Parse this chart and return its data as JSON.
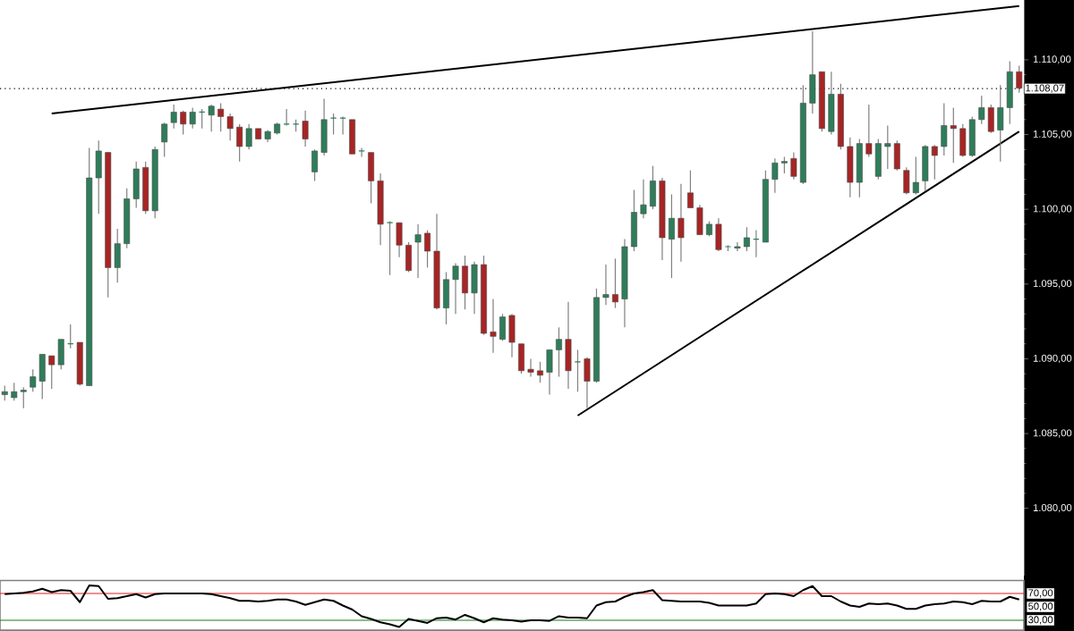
{
  "chart_data": [
    {
      "type": "candlestick",
      "categories": [
        null,
        null,
        null,
        null,
        null,
        null,
        null,
        null,
        null,
        null,
        null,
        null,
        null,
        null,
        null,
        null,
        null,
        null,
        null,
        null,
        null,
        null,
        null,
        null,
        null,
        null,
        null,
        null,
        null,
        null,
        null,
        null,
        null,
        null,
        null,
        null,
        null,
        null,
        null,
        null,
        null,
        null,
        null,
        null,
        null,
        null,
        null,
        null,
        null,
        null,
        null,
        null,
        null,
        null,
        null,
        null,
        null,
        null,
        null,
        null,
        null,
        null,
        null,
        null,
        null,
        null,
        null,
        null,
        null,
        null,
        null,
        null,
        null,
        null,
        null,
        null,
        null,
        null,
        null,
        null,
        null,
        null,
        null,
        null,
        null,
        null,
        null,
        null,
        null,
        null,
        null,
        null,
        null,
        null,
        null,
        null,
        null,
        null,
        null,
        null,
        null,
        null,
        null,
        null,
        null,
        null,
        null,
        null,
        null
      ],
      "ohlc": [
        [
          1087.6,
          1088.2,
          1087.2,
          1087.8
        ],
        [
          1087.4,
          1088.4,
          1087.2,
          1087.8
        ],
        [
          1087.8,
          1088.1,
          1086.7,
          1087.9
        ],
        [
          1088.1,
          1089.3,
          1087.8,
          1088.8
        ],
        [
          1088.5,
          1090.3,
          1087.3,
          1090.3
        ],
        [
          1090.2,
          1090.2,
          1088.0,
          1089.6
        ],
        [
          1089.6,
          1091.3,
          1089.3,
          1091.3
        ],
        [
          1091.0,
          1092.3,
          1090.7,
          1091.0
        ],
        [
          1091.1,
          1091.1,
          1088.2,
          1088.3
        ],
        [
          1088.2,
          1104.1,
          1088.2,
          1102.1
        ],
        [
          1102.1,
          1104.6,
          1099.7,
          1103.9
        ],
        [
          1103.8,
          1103.8,
          1094.1,
          1096.1
        ],
        [
          1096.1,
          1098.7,
          1095.1,
          1097.7
        ],
        [
          1097.7,
          1101.4,
          1097.4,
          1100.7
        ],
        [
          1100.7,
          1103.2,
          1100.1,
          1102.7
        ],
        [
          1102.8,
          1103.2,
          1099.7,
          1099.9
        ],
        [
          1099.9,
          1104.2,
          1099.4,
          1104.0
        ],
        [
          1104.5,
          1105.8,
          1103.5,
          1105.7
        ],
        [
          1105.8,
          1107.0,
          1105.4,
          1106.5
        ],
        [
          1106.5,
          1106.6,
          1105.0,
          1105.7
        ],
        [
          1105.7,
          1106.8,
          1105.4,
          1106.5
        ],
        [
          1106.5,
          1106.7,
          1105.4,
          1106.5
        ],
        [
          1106.3,
          1107.0,
          1105.2,
          1106.9
        ],
        [
          1106.7,
          1107.1,
          1105.2,
          1106.2
        ],
        [
          1106.2,
          1106.4,
          1104.6,
          1105.4
        ],
        [
          1105.5,
          1105.7,
          1103.2,
          1104.2
        ],
        [
          1104.2,
          1105.7,
          1104.0,
          1105.4
        ],
        [
          1105.4,
          1105.4,
          1104.7,
          1104.7
        ],
        [
          1104.7,
          1105.3,
          1104.5,
          1105.2
        ],
        [
          1105.1,
          1105.8,
          1105.0,
          1105.7
        ],
        [
          1105.7,
          1106.7,
          1105.6,
          1105.7
        ],
        [
          1105.7,
          1106.0,
          1105.2,
          1105.7
        ],
        [
          1105.9,
          1106.6,
          1104.2,
          1104.7
        ],
        [
          1102.5,
          1104.0,
          1101.9,
          1103.9
        ],
        [
          1103.8,
          1107.4,
          1103.6,
          1106.0
        ],
        [
          1106.1,
          1106.4,
          1105.0,
          1106.1
        ],
        [
          1106.1,
          1106.2,
          1105.0,
          1106.1
        ],
        [
          1106.0,
          1106.0,
          1103.7,
          1103.7
        ],
        [
          1103.9,
          1104.1,
          1103.5,
          1103.9
        ],
        [
          1103.8,
          1103.8,
          1100.4,
          1101.9
        ],
        [
          1101.9,
          1102.4,
          1097.6,
          1099.0
        ],
        [
          1099.1,
          1099.2,
          1095.6,
          1099.1
        ],
        [
          1099.1,
          1099.1,
          1096.8,
          1097.6
        ],
        [
          1097.6,
          1097.8,
          1095.8,
          1095.9
        ],
        [
          1097.8,
          1099.0,
          1095.4,
          1098.3
        ],
        [
          1098.4,
          1098.6,
          1096.1,
          1097.2
        ],
        [
          1097.2,
          1099.7,
          1093.3,
          1093.4
        ],
        [
          1093.4,
          1095.8,
          1092.3,
          1095.3
        ],
        [
          1095.3,
          1096.4,
          1093.0,
          1096.2
        ],
        [
          1096.2,
          1096.9,
          1093.3,
          1094.4
        ],
        [
          1094.4,
          1096.5,
          1093.0,
          1096.3
        ],
        [
          1096.3,
          1096.9,
          1091.6,
          1091.7
        ],
        [
          1091.8,
          1094.0,
          1090.4,
          1091.5
        ],
        [
          1091.3,
          1093.0,
          1091.2,
          1092.8
        ],
        [
          1092.9,
          1093.0,
          1090.1,
          1091.1
        ],
        [
          1091.0,
          1091.0,
          1089.0,
          1089.2
        ],
        [
          1089.3,
          1090.0,
          1088.8,
          1089.1
        ],
        [
          1089.2,
          1089.8,
          1088.4,
          1088.9
        ],
        [
          1089.1,
          1090.6,
          1087.6,
          1090.6
        ],
        [
          1090.6,
          1092.1,
          1088.8,
          1091.3
        ],
        [
          1091.3,
          1093.8,
          1088.0,
          1089.2
        ],
        [
          1089.8,
          1090.6,
          1087.8,
          1089.8
        ],
        [
          1090.0,
          1090.1,
          1086.7,
          1088.5
        ],
        [
          1088.5,
          1094.7,
          1088.4,
          1094.1
        ],
        [
          1094.1,
          1096.3,
          1093.6,
          1094.3
        ],
        [
          1094.3,
          1096.7,
          1093.4,
          1093.8
        ],
        [
          1094.0,
          1098.0,
          1092.1,
          1097.5
        ],
        [
          1097.5,
          1101.3,
          1097.2,
          1099.8
        ],
        [
          1099.7,
          1102.0,
          1099.4,
          1100.3
        ],
        [
          1100.2,
          1102.9,
          1100.0,
          1101.9
        ],
        [
          1101.9,
          1102.1,
          1096.6,
          1098.1
        ],
        [
          1098.0,
          1101.0,
          1095.4,
          1099.4
        ],
        [
          1099.4,
          1101.7,
          1096.5,
          1098.1
        ],
        [
          1101.1,
          1102.6,
          1100.1,
          1100.1
        ],
        [
          1100.1,
          1100.3,
          1098.3,
          1098.3
        ],
        [
          1098.3,
          1099.2,
          1098.2,
          1099.0
        ],
        [
          1099.0,
          1099.4,
          1097.2,
          1097.3
        ],
        [
          1097.5,
          1097.6,
          1097.2,
          1097.5
        ],
        [
          1097.4,
          1097.8,
          1097.2,
          1097.5
        ],
        [
          1097.5,
          1098.8,
          1097.2,
          1098.1
        ],
        [
          1098.0,
          1098.6,
          1096.8,
          1098.0
        ],
        [
          1097.8,
          1102.6,
          1097.8,
          1102.0
        ],
        [
          1102.0,
          1103.4,
          1101.1,
          1103.1
        ],
        [
          1103.1,
          1103.5,
          1102.4,
          1103.2
        ],
        [
          1103.4,
          1103.8,
          1102.0,
          1102.2
        ],
        [
          1101.8,
          1108.3,
          1101.7,
          1107.1
        ],
        [
          1107.1,
          1111.9,
          1106.4,
          1109.0
        ],
        [
          1109.2,
          1109.2,
          1105.2,
          1105.4
        ],
        [
          1105.2,
          1109.2,
          1105.0,
          1107.7
        ],
        [
          1107.7,
          1108.4,
          1104.0,
          1104.2
        ],
        [
          1104.2,
          1104.8,
          1100.8,
          1101.8
        ],
        [
          1101.8,
          1104.7,
          1100.8,
          1104.4
        ],
        [
          1104.4,
          1107.0,
          1103.5,
          1103.7
        ],
        [
          1102.2,
          1104.7,
          1102.0,
          1104.4
        ],
        [
          1104.2,
          1105.6,
          1102.7,
          1104.4
        ],
        [
          1104.4,
          1104.6,
          1102.6,
          1102.7
        ],
        [
          1102.6,
          1102.8,
          1101.0,
          1101.1
        ],
        [
          1101.1,
          1103.5,
          1101.0,
          1101.8
        ],
        [
          1101.9,
          1104.3,
          1101.2,
          1104.2
        ],
        [
          1104.2,
          1104.3,
          1102.0,
          1103.6
        ],
        [
          1104.2,
          1107.1,
          1103.6,
          1105.6
        ],
        [
          1105.6,
          1106.8,
          1103.1,
          1105.4
        ],
        [
          1105.4,
          1105.7,
          1103.5,
          1103.6
        ],
        [
          1103.6,
          1106.2,
          1103.5,
          1106.0
        ],
        [
          1106.0,
          1107.6,
          1105.7,
          1106.8
        ],
        [
          1106.8,
          1107.0,
          1105.1,
          1105.2
        ],
        [
          1105.3,
          1108.3,
          1103.2,
          1106.8
        ],
        [
          1106.8,
          1109.9,
          1105.7,
          1109.2
        ],
        [
          1109.2,
          1109.6,
          1107.8,
          1108.1
        ]
      ],
      "colors": [
        "#2e7d5a",
        "#2e7d5a",
        "#2e7d5a",
        "#2e7d5a",
        "#2e7d5a",
        "#a82424",
        "#2e7d5a",
        "#2e7d5a",
        "#a82424",
        "#2e7d5a",
        "#2e7d5a",
        "#a82424",
        "#2e7d5a",
        "#2e7d5a",
        "#2e7d5a",
        "#a82424",
        "#2e7d5a",
        "#2e7d5a",
        "#2e7d5a",
        "#a82424",
        "#2e7d5a",
        "#2e7d5a",
        "#2e7d5a",
        "#a82424",
        "#a82424",
        "#a82424",
        "#2e7d5a",
        "#a82424",
        "#2e7d5a",
        "#2e7d5a",
        "#2e7d5a",
        "#2e7d5a",
        "#a82424",
        "#2e7d5a",
        "#2e7d5a",
        "#2e7d5a",
        "#2e7d5a",
        "#a82424",
        "#2e7d5a",
        "#a82424",
        "#a82424",
        "#2e7d5a",
        "#a82424",
        "#a82424",
        "#2e7d5a",
        "#a82424",
        "#a82424",
        "#2e7d5a",
        "#2e7d5a",
        "#a82424",
        "#2e7d5a",
        "#a82424",
        "#a82424",
        "#2e7d5a",
        "#a82424",
        "#a82424",
        "#a82424",
        "#a82424",
        "#2e7d5a",
        "#2e7d5a",
        "#a82424",
        "#2e7d5a",
        "#a82424",
        "#2e7d5a",
        "#2e7d5a",
        "#a82424",
        "#2e7d5a",
        "#2e7d5a",
        "#2e7d5a",
        "#2e7d5a",
        "#a82424",
        "#2e7d5a",
        "#a82424",
        "#a82424",
        "#a82424",
        "#2e7d5a",
        "#a82424",
        "#2e7d5a",
        "#2e7d5a",
        "#2e7d5a",
        "#2e7d5a",
        "#2e7d5a",
        "#2e7d5a",
        "#2e7d5a",
        "#a82424",
        "#2e7d5a",
        "#2e7d5a",
        "#a82424",
        "#2e7d5a",
        "#a82424",
        "#a82424",
        "#2e7d5a",
        "#a82424",
        "#2e7d5a",
        "#2e7d5a",
        "#a82424",
        "#a82424",
        "#2e7d5a",
        "#2e7d5a",
        "#a82424",
        "#2e7d5a",
        "#a82424",
        "#a82424",
        "#2e7d5a",
        "#2e7d5a",
        "#a82424",
        "#2e7d5a",
        "#2e7d5a",
        "#a82424"
      ],
      "series": [
        {
          "type": "line",
          "color": "#000000",
          "values": [
            null,
            null,
            null,
            null,
            null,
            1106.4,
            null,
            null,
            null,
            null,
            null,
            null,
            null,
            null,
            null,
            null,
            null,
            null,
            null,
            null,
            null,
            null,
            null,
            null,
            null,
            null,
            null,
            null,
            null,
            null,
            null,
            null,
            null,
            null,
            null,
            null,
            null,
            null,
            null,
            null,
            null,
            null,
            null,
            null,
            null,
            null,
            null,
            null,
            null,
            null,
            null,
            null,
            null,
            null,
            null,
            null,
            null,
            null,
            null,
            null,
            null,
            null,
            null,
            null,
            null,
            null,
            null,
            null,
            null,
            null,
            null,
            null,
            null,
            null,
            null,
            null,
            null,
            null,
            null,
            null,
            null,
            null,
            null,
            null,
            null,
            null,
            null,
            null,
            null,
            null,
            null,
            null,
            null,
            null,
            null,
            null,
            null,
            null,
            null,
            null,
            null,
            null,
            null,
            null,
            null,
            null,
            null,
            null,
            1113.6
          ]
        },
        {
          "type": "line",
          "color": "#000000",
          "values": [
            null,
            null,
            null,
            null,
            null,
            null,
            null,
            null,
            null,
            null,
            null,
            null,
            null,
            null,
            null,
            null,
            null,
            null,
            null,
            null,
            null,
            null,
            null,
            null,
            null,
            null,
            null,
            null,
            null,
            null,
            null,
            null,
            null,
            null,
            null,
            null,
            null,
            null,
            null,
            null,
            null,
            null,
            null,
            null,
            null,
            null,
            null,
            null,
            null,
            null,
            null,
            null,
            null,
            null,
            null,
            null,
            null,
            null,
            null,
            null,
            null,
            1086.2,
            null,
            null,
            null,
            null,
            null,
            null,
            null,
            null,
            null,
            null,
            null,
            null,
            null,
            null,
            null,
            null,
            null,
            null,
            null,
            null,
            null,
            null,
            null,
            null,
            null,
            null,
            null,
            null,
            null,
            null,
            null,
            null,
            null,
            null,
            null,
            null,
            null,
            null,
            null,
            null,
            null,
            null,
            null,
            null,
            null,
            null,
            1105.2
          ]
        }
      ],
      "ylim": [
        1075.5,
        1114
      ],
      "yticks": [
        {
          "value": 1080,
          "label": "1.080,00"
        },
        {
          "value": 1085,
          "label": "1.085,00"
        },
        {
          "value": 1090,
          "label": "1.090,00"
        },
        {
          "value": 1095,
          "label": "1.095,00"
        },
        {
          "value": 1100,
          "label": "1.100,00"
        },
        {
          "value": 1105,
          "label": "1.105,00"
        },
        {
          "value": 1110,
          "label": "1.110,00"
        }
      ],
      "ref_lines": [
        {
          "axis": "y",
          "value": 1108.07,
          "label": "1.108,07",
          "color": "#000000",
          "line_style": "dotted"
        }
      ],
      "tick_labels": "y"
    },
    {
      "type": "line",
      "categories": [
        null,
        null,
        null,
        null,
        null,
        null,
        null,
        null,
        null,
        null,
        null,
        null,
        null,
        null,
        null,
        null,
        null,
        null,
        null,
        null,
        null,
        null,
        null,
        null,
        null,
        null,
        null,
        null,
        null,
        null,
        null,
        null,
        null,
        null,
        null,
        null,
        null,
        null,
        null,
        null,
        null,
        null,
        null,
        null,
        null,
        null,
        null,
        null,
        null,
        null,
        null,
        null,
        null,
        null,
        null,
        null,
        null,
        null,
        null,
        null,
        null,
        null,
        null,
        null,
        null,
        null,
        null,
        null,
        null,
        null,
        null,
        null,
        null,
        null,
        null,
        null,
        null,
        null,
        null,
        null,
        null,
        null,
        null,
        null,
        null,
        null,
        null,
        null,
        null,
        null,
        null,
        null,
        null,
        null,
        null,
        null,
        null,
        null,
        null,
        null,
        null,
        null,
        null,
        null,
        null,
        null,
        null,
        null,
        null
      ],
      "series": [
        {
          "color": "#000000",
          "values": [
            69,
            70,
            71,
            73,
            77,
            72,
            75,
            74,
            57,
            82,
            81,
            62,
            63,
            66,
            69,
            64,
            69,
            70,
            70,
            70,
            70,
            70,
            69,
            66,
            63,
            59,
            59,
            58,
            59,
            61,
            61,
            58,
            53,
            57,
            61,
            59,
            52,
            46,
            36,
            32,
            27,
            24,
            20,
            32,
            29,
            26,
            33,
            34,
            31,
            38,
            33,
            27,
            33,
            31,
            30,
            28,
            30,
            30,
            29,
            36,
            34,
            34,
            33,
            52,
            57,
            58,
            65,
            70,
            72,
            75,
            60,
            59,
            58,
            58,
            58,
            56,
            52,
            52,
            52,
            52,
            55,
            69,
            70,
            69,
            66,
            75,
            81,
            66,
            66,
            58,
            52,
            50,
            55,
            54,
            55,
            52,
            47,
            47,
            52,
            54,
            55,
            58,
            57,
            54,
            59,
            58,
            58,
            65,
            61
          ]
        }
      ],
      "ylim": [
        14,
        89.5
      ],
      "yticks": [
        {
          "value": 30,
          "label": "30,00"
        },
        {
          "value": 50,
          "label": "50,00"
        },
        {
          "value": 70,
          "label": "70,00"
        }
      ],
      "ref_lines": [
        {
          "axis": "y",
          "value": 70,
          "color": "#e02020"
        },
        {
          "axis": "y",
          "value": 30,
          "color": "#1a7a1a"
        }
      ],
      "tick_labels": "y"
    }
  ]
}
